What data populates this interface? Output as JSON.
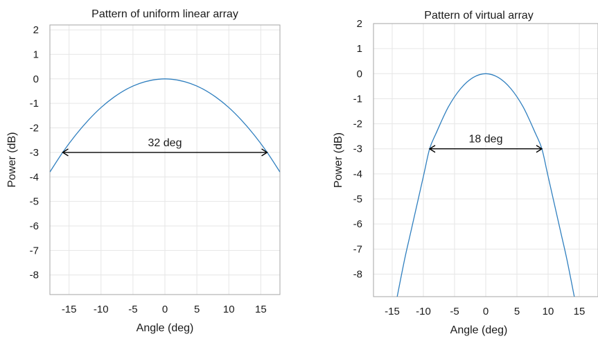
{
  "chart_data": [
    {
      "type": "line",
      "title": "Pattern of uniform linear array",
      "xlabel": "Angle (deg)",
      "ylabel": "Power (dB)",
      "xlim": [
        -18,
        18
      ],
      "ylim": [
        -8.8,
        2.2
      ],
      "xticks": [
        -15,
        -10,
        -5,
        0,
        5,
        10,
        15
      ],
      "yticks": [
        2,
        1,
        0,
        -1,
        -2,
        -3,
        -4,
        -5,
        -6,
        -7,
        -8
      ],
      "grid": true,
      "series": [
        {
          "x": [
            -18,
            -16,
            -14,
            -12,
            -10,
            -8,
            -6,
            -4,
            -2,
            0,
            2,
            4,
            6,
            8,
            10,
            12,
            14,
            16,
            18
          ],
          "y": [
            -3.8,
            -3.0,
            -2.3,
            -1.69,
            -1.17,
            -0.75,
            -0.42,
            -0.19,
            -0.05,
            0,
            -0.05,
            -0.19,
            -0.42,
            -0.75,
            -1.17,
            -1.69,
            -2.3,
            -3.0,
            -3.8
          ]
        }
      ],
      "annotation": {
        "text": "32 deg",
        "x_from": -16,
        "x_to": 16,
        "y": -3
      }
    },
    {
      "type": "line",
      "title": "Pattern of virtual array",
      "xlabel": "Angle (deg)",
      "ylabel": "Power (dB)",
      "xlim": [
        -18,
        18
      ],
      "ylim": [
        -8.9,
        2
      ],
      "xticks": [
        -15,
        -10,
        -5,
        0,
        5,
        10,
        15
      ],
      "yticks": [
        2,
        1,
        0,
        -1,
        -2,
        -3,
        -4,
        -5,
        -6,
        -7,
        -8
      ],
      "grid": true,
      "series": [
        {
          "x": [
            -14.2,
            -13,
            -12,
            -10,
            -9,
            -8,
            -6,
            -4,
            -2,
            0,
            2,
            4,
            6,
            8,
            9,
            10,
            12,
            13,
            14.2
          ],
          "y": [
            -8.9,
            -7.4,
            -6.3,
            -4.1,
            -3.0,
            -2.4,
            -1.33,
            -0.59,
            -0.15,
            0,
            -0.15,
            -0.59,
            -1.33,
            -2.4,
            -3.0,
            -4.1,
            -6.3,
            -7.4,
            -8.9
          ]
        }
      ],
      "annotation": {
        "text": "18 deg",
        "x_from": -9,
        "x_to": 9,
        "y": -3
      }
    }
  ]
}
